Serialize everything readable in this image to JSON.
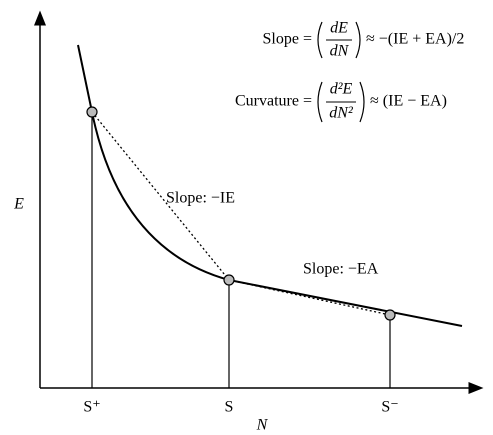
{
  "axes": {
    "x_label": "N",
    "y_label": "E"
  },
  "points": [
    {
      "label": "S⁺"
    },
    {
      "label": "S"
    },
    {
      "label": "S⁻"
    }
  ],
  "annotations": [
    "Slope: −IE",
    "Slope: −EA"
  ],
  "formulas": [
    {
      "lhs": "Slope =",
      "numerator": "dE",
      "denominator": "dN",
      "rhs": "≈ −(IE + EA)/2"
    },
    {
      "lhs": "Curvature =",
      "numerator": "d²E",
      "denominator": "dN²",
      "rhs": "≈ (IE − EA)"
    }
  ]
}
